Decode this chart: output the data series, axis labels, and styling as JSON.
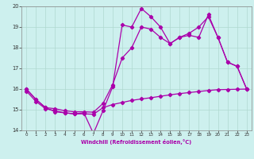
{
  "xlabel": "Windchill (Refroidissement éolien,°C)",
  "background_color": "#cdf0ee",
  "grid_color": "#b0d8d0",
  "line_color": "#aa00aa",
  "spine_color": "#888888",
  "xlim": [
    -0.5,
    23.5
  ],
  "ylim": [
    14,
    20
  ],
  "yticks": [
    14,
    15,
    16,
    17,
    18,
    19,
    20
  ],
  "xticks": [
    0,
    1,
    2,
    3,
    4,
    5,
    6,
    7,
    8,
    9,
    10,
    11,
    12,
    13,
    14,
    15,
    16,
    17,
    18,
    19,
    20,
    21,
    22,
    23
  ],
  "line1_x": [
    0,
    1,
    2,
    3,
    4,
    5,
    6,
    7,
    8,
    9,
    10,
    11,
    12,
    13,
    14,
    15,
    16,
    17,
    18,
    19,
    20,
    21,
    22,
    23
  ],
  "line1_y": [
    16.0,
    15.5,
    15.1,
    14.9,
    14.85,
    14.8,
    14.85,
    13.85,
    14.95,
    16.1,
    19.1,
    19.0,
    19.9,
    19.5,
    19.0,
    18.2,
    18.5,
    18.6,
    18.5,
    19.6,
    18.5,
    17.3,
    17.1,
    16.0
  ],
  "line2_x": [
    0,
    1,
    2,
    3,
    4,
    5,
    6,
    7,
    8,
    9,
    10,
    11,
    12,
    13,
    14,
    15,
    16,
    17,
    18,
    19,
    20,
    21,
    22,
    23
  ],
  "line2_y": [
    15.9,
    15.4,
    15.05,
    14.95,
    14.85,
    14.8,
    14.8,
    14.78,
    15.1,
    15.25,
    15.35,
    15.45,
    15.52,
    15.58,
    15.65,
    15.72,
    15.78,
    15.83,
    15.88,
    15.93,
    15.97,
    15.98,
    15.99,
    16.0
  ],
  "line3_x": [
    0,
    1,
    2,
    3,
    4,
    5,
    6,
    7,
    8,
    9,
    10,
    11,
    12,
    13,
    14,
    15,
    16,
    17,
    18,
    19,
    20,
    21,
    22,
    23
  ],
  "line3_y": [
    16.0,
    15.5,
    15.1,
    15.05,
    14.95,
    14.9,
    14.9,
    14.88,
    15.3,
    16.2,
    17.5,
    18.0,
    19.0,
    18.9,
    18.5,
    18.2,
    18.5,
    18.7,
    19.0,
    19.5,
    18.5,
    17.3,
    17.1,
    16.0
  ]
}
